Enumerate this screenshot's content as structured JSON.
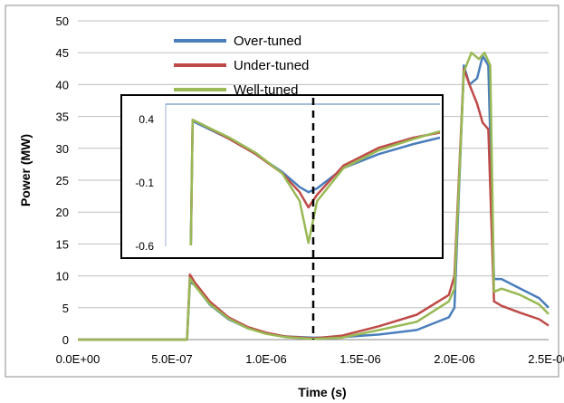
{
  "colors": {
    "over_tuned": "#4a7ebb",
    "under_tuned": "#be4b48",
    "well_tuned": "#98b954",
    "grid": "#bfbfbf",
    "frame": "#8c8c8c"
  },
  "chart_data": [
    {
      "type": "line",
      "title": "",
      "xlabel": "Time (s)",
      "ylabel": "Power (MW)",
      "xlim": [
        0,
        2.5e-06
      ],
      "ylim": [
        0,
        50
      ],
      "grid": true,
      "legend_position": "top-center",
      "x_ticks": [
        {
          "value": 0,
          "label": "0.0E+00"
        },
        {
          "value": 5e-07,
          "label": "5.0E-07"
        },
        {
          "value": 1e-06,
          "label": "1.0E-06"
        },
        {
          "value": 1.5e-06,
          "label": "1.5E-06"
        },
        {
          "value": 2e-06,
          "label": "2.0E-06"
        },
        {
          "value": 2.5e-06,
          "label": "2.5E-06"
        }
      ],
      "y_ticks": [
        {
          "value": 0,
          "label": "0"
        },
        {
          "value": 5,
          "label": "5"
        },
        {
          "value": 10,
          "label": "10"
        },
        {
          "value": 15,
          "label": "15"
        },
        {
          "value": 20,
          "label": "20"
        },
        {
          "value": 25,
          "label": "25"
        },
        {
          "value": 30,
          "label": "30"
        },
        {
          "value": 35,
          "label": "35"
        },
        {
          "value": 40,
          "label": "40"
        },
        {
          "value": 45,
          "label": "45"
        },
        {
          "value": 50,
          "label": "50"
        }
      ],
      "series": [
        {
          "name": "Over-tuned",
          "color_key": "over_tuned",
          "points": [
            [
              0,
              0
            ],
            [
              5.8e-07,
              0
            ],
            [
              5.95e-07,
              9
            ],
            [
              6.2e-07,
              8.6
            ],
            [
              7e-07,
              5.5
            ],
            [
              8e-07,
              3.2
            ],
            [
              9e-07,
              1.8
            ],
            [
              1e-06,
              1
            ],
            [
              1.1e-06,
              0.5
            ],
            [
              1.25e-06,
              0.3
            ],
            [
              1.4e-06,
              0.4
            ],
            [
              1.6e-06,
              0.8
            ],
            [
              1.8e-06,
              1.5
            ],
            [
              1.97e-06,
              3.5
            ],
            [
              2e-06,
              5
            ],
            [
              2.05e-06,
              43
            ],
            [
              2.08e-06,
              40
            ],
            [
              2.12e-06,
              41
            ],
            [
              2.15e-06,
              44.5
            ],
            [
              2.18e-06,
              43
            ],
            [
              2.21e-06,
              9.5
            ],
            [
              2.25e-06,
              9.5
            ],
            [
              2.35e-06,
              8
            ],
            [
              2.45e-06,
              6.5
            ],
            [
              2.5e-06,
              5
            ]
          ]
        },
        {
          "name": "Under-tuned",
          "color_key": "under_tuned",
          "points": [
            [
              0,
              0
            ],
            [
              5.8e-07,
              0
            ],
            [
              5.95e-07,
              10.2
            ],
            [
              6.2e-07,
              9
            ],
            [
              7e-07,
              6
            ],
            [
              8e-07,
              3.5
            ],
            [
              9e-07,
              2
            ],
            [
              1e-06,
              1.1
            ],
            [
              1.1e-06,
              0.5
            ],
            [
              1.25e-06,
              0.2
            ],
            [
              1.4e-06,
              0.6
            ],
            [
              1.6e-06,
              2.1
            ],
            [
              1.8e-06,
              3.9
            ],
            [
              1.97e-06,
              7
            ],
            [
              2e-06,
              10
            ],
            [
              2.05e-06,
              42.5
            ],
            [
              2.08e-06,
              40
            ],
            [
              2.12e-06,
              37
            ],
            [
              2.15e-06,
              34
            ],
            [
              2.18e-06,
              33
            ],
            [
              2.21e-06,
              6
            ],
            [
              2.25e-06,
              5.3
            ],
            [
              2.35e-06,
              4.2
            ],
            [
              2.45e-06,
              3.2
            ],
            [
              2.5e-06,
              2.2
            ]
          ]
        },
        {
          "name": "Well-tuned",
          "color_key": "well_tuned",
          "points": [
            [
              0,
              0
            ],
            [
              5.8e-07,
              0
            ],
            [
              5.95e-07,
              9.6
            ],
            [
              6.2e-07,
              8.5
            ],
            [
              7e-07,
              5.6
            ],
            [
              8e-07,
              3.3
            ],
            [
              9e-07,
              1.8
            ],
            [
              1e-06,
              0.9
            ],
            [
              1.1e-06,
              0.4
            ],
            [
              1.25e-06,
              0.1
            ],
            [
              1.4e-06,
              0.3
            ],
            [
              1.6e-06,
              1.5
            ],
            [
              1.8e-06,
              2.8
            ],
            [
              1.97e-06,
              6
            ],
            [
              2e-06,
              8
            ],
            [
              2.05e-06,
              42
            ],
            [
              2.09e-06,
              45
            ],
            [
              2.13e-06,
              44
            ],
            [
              2.16e-06,
              45
            ],
            [
              2.19e-06,
              43
            ],
            [
              2.21e-06,
              7.5
            ],
            [
              2.25e-06,
              8
            ],
            [
              2.35e-06,
              7
            ],
            [
              2.45e-06,
              5.5
            ],
            [
              2.5e-06,
              4
            ]
          ]
        }
      ]
    },
    {
      "type": "line",
      "title": "",
      "xlabel": "",
      "ylabel": "",
      "xlim": [
        5.5e-07,
        2e-06
      ],
      "ylim": [
        -0.6,
        0.4
      ],
      "y_ticks": [
        {
          "value": 0.4,
          "label": "0.4"
        },
        {
          "value": -0.1,
          "label": "-0.1"
        },
        {
          "value": -0.6,
          "label": "-0.6"
        }
      ],
      "marker_x": 1.25e-06,
      "series": [
        {
          "name": "Over-tuned",
          "color_key": "over_tuned",
          "points": [
            [
              5.8e-07,
              -0.6
            ],
            [
              5.9e-07,
              0.38
            ],
            [
              6.5e-07,
              0.34
            ],
            [
              8e-07,
              0.24
            ],
            [
              9.5e-07,
              0.12
            ],
            [
              1.1e-06,
              -0.02
            ],
            [
              1.2e-06,
              -0.14
            ],
            [
              1.25e-06,
              -0.18
            ],
            [
              1.3e-06,
              -0.15
            ],
            [
              1.45e-06,
              0.01
            ],
            [
              1.65e-06,
              0.12
            ],
            [
              1.85e-06,
              0.2
            ],
            [
              2e-06,
              0.25
            ]
          ]
        },
        {
          "name": "Under-tuned",
          "color_key": "under_tuned",
          "points": [
            [
              5.8e-07,
              -0.6
            ],
            [
              5.9e-07,
              0.39
            ],
            [
              6.5e-07,
              0.35
            ],
            [
              8e-07,
              0.24
            ],
            [
              9.5e-07,
              0.12
            ],
            [
              1.1e-06,
              -0.03
            ],
            [
              1.2e-06,
              -0.18
            ],
            [
              1.25e-06,
              -0.3
            ],
            [
              1.3e-06,
              -0.2
            ],
            [
              1.45e-06,
              0.03
            ],
            [
              1.65e-06,
              0.17
            ],
            [
              1.85e-06,
              0.25
            ],
            [
              2e-06,
              0.29
            ]
          ]
        },
        {
          "name": "Well-tuned",
          "color_key": "well_tuned",
          "points": [
            [
              5.8e-07,
              -0.6
            ],
            [
              5.9e-07,
              0.39
            ],
            [
              6.5e-07,
              0.35
            ],
            [
              8e-07,
              0.25
            ],
            [
              9.5e-07,
              0.13
            ],
            [
              1.1e-06,
              -0.03
            ],
            [
              1.2e-06,
              -0.25
            ],
            [
              1.25e-06,
              -0.58
            ],
            [
              1.3e-06,
              -0.25
            ],
            [
              1.45e-06,
              0.01
            ],
            [
              1.65e-06,
              0.15
            ],
            [
              1.85e-06,
              0.24
            ],
            [
              2e-06,
              0.3
            ]
          ]
        }
      ]
    }
  ]
}
